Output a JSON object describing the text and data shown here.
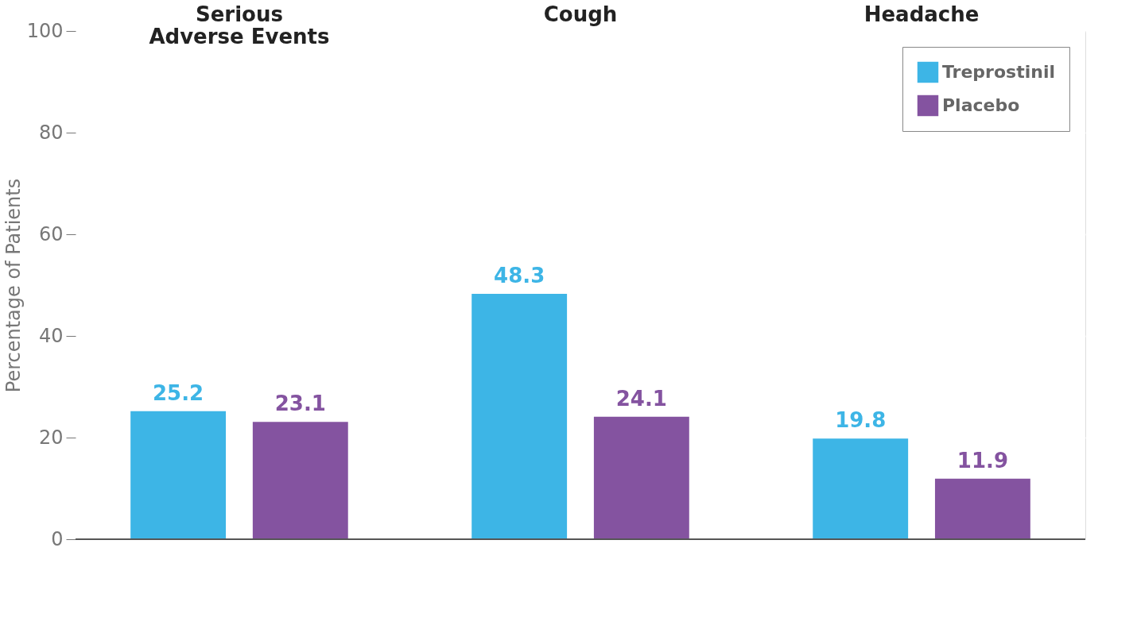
{
  "chart_data": {
    "type": "bar",
    "ylabel": "Percentage of Patients",
    "categories": [
      "Serious Adverse Events",
      "Cough",
      "Headache"
    ],
    "series": [
      {
        "name": "Treprostinil",
        "color": "#3db5e6",
        "values": [
          25.2,
          48.3,
          19.8
        ]
      },
      {
        "name": "Placebo",
        "color": "#8453a0",
        "values": [
          23.1,
          24.1,
          11.9
        ]
      }
    ],
    "ylim": [
      0,
      100
    ],
    "yticks": [
      0,
      20,
      40,
      60,
      80,
      100
    ],
    "grid": true,
    "legend": "top right",
    "data_labels": true
  }
}
